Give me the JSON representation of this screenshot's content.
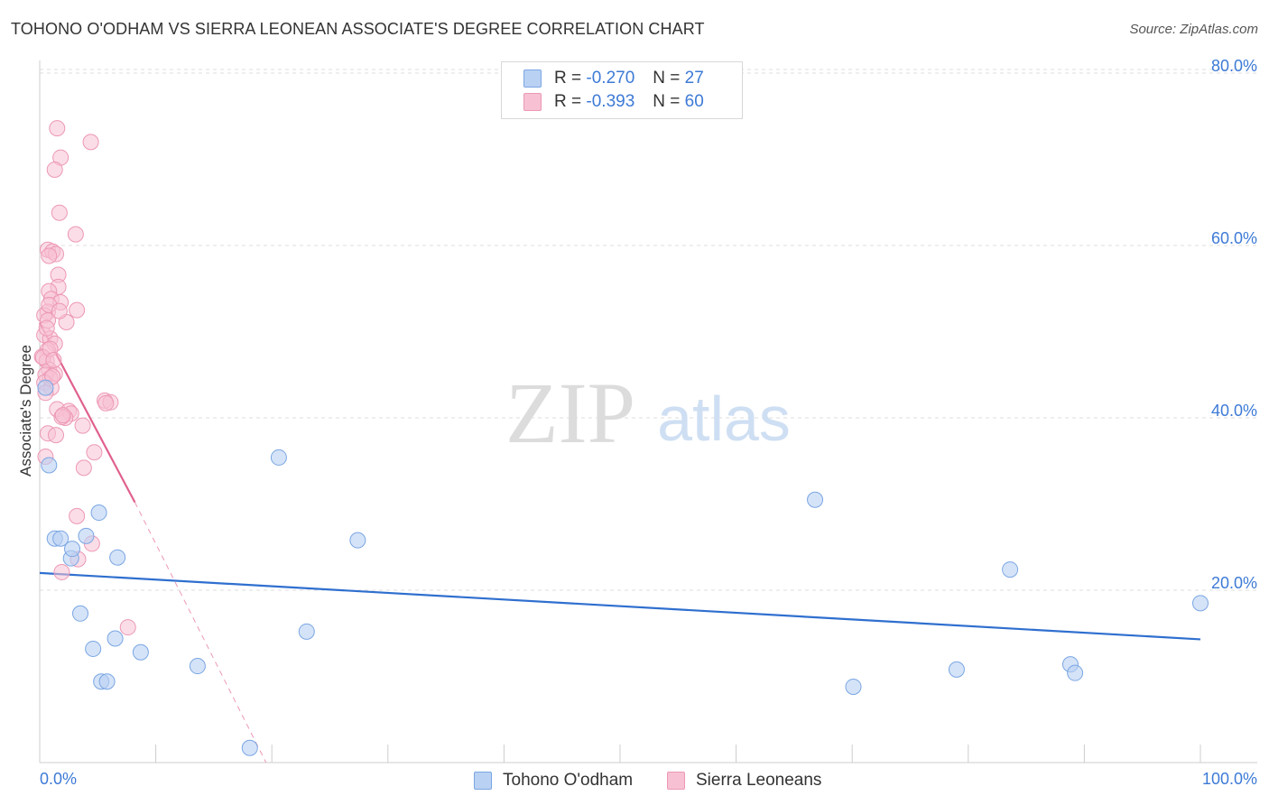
{
  "header": {
    "title": "TOHONO O'ODHAM VS SIERRA LEONEAN ASSOCIATE'S DEGREE CORRELATION CHART",
    "source": "Source: ZipAtlas.com"
  },
  "watermark": {
    "zip": "ZIP",
    "atlas": "atlas"
  },
  "legend_top": {
    "series1": {
      "r_label": "R = ",
      "r_value": "-0.270",
      "n_label": "N = ",
      "n_value": "27"
    },
    "series2": {
      "r_label": "R = ",
      "r_value": "-0.393",
      "n_label": "N = ",
      "n_value": "60"
    }
  },
  "colors": {
    "blue_fill": "#b9d1f3",
    "blue_stroke": "#7aa6e3",
    "blue_line": "#2f6fcf",
    "pink_fill": "#f7c1d3",
    "pink_stroke": "#ec98b5",
    "pink_line": "#e0608e",
    "axis_label": "#3d7ad6",
    "grid": "#dddddd"
  },
  "chart_data": {
    "type": "scatter",
    "title": "TOHONO O'ODHAM VS SIERRA LEONEAN ASSOCIATE'S DEGREE CORRELATION CHART",
    "xlabel": "",
    "ylabel": "Associate's Degree",
    "xlim": [
      0,
      100
    ],
    "ylim": [
      0,
      82
    ],
    "x_tick_labels": [
      "0.0%",
      "100.0%"
    ],
    "y_ticks": [
      20,
      40,
      60,
      80
    ],
    "y_tick_labels": [
      "20.0%",
      "40.0%",
      "60.0%",
      "80.0%"
    ],
    "grid": true,
    "legend_position": "bottom",
    "series": [
      {
        "name": "Tohono O'odham",
        "color": "blue",
        "points": [
          [
            0.8,
            34.5
          ],
          [
            1.3,
            26.0
          ],
          [
            1.8,
            26.0
          ],
          [
            2.7,
            23.7
          ],
          [
            2.8,
            24.8
          ],
          [
            4.0,
            26.3
          ],
          [
            5.1,
            29.0
          ],
          [
            6.7,
            23.8
          ],
          [
            3.5,
            17.3
          ],
          [
            4.6,
            13.2
          ],
          [
            6.5,
            14.4
          ],
          [
            8.7,
            12.8
          ],
          [
            5.3,
            9.4
          ],
          [
            5.8,
            9.4
          ],
          [
            13.6,
            11.2
          ],
          [
            18.1,
            1.7
          ],
          [
            20.6,
            35.4
          ],
          [
            23.0,
            15.2
          ],
          [
            27.4,
            25.8
          ],
          [
            66.8,
            30.5
          ],
          [
            70.1,
            8.8
          ],
          [
            79.0,
            10.8
          ],
          [
            83.6,
            22.4
          ],
          [
            88.8,
            11.4
          ],
          [
            89.2,
            10.4
          ],
          [
            100.0,
            18.5
          ],
          [
            0.5,
            43.5
          ]
        ],
        "trend": {
          "x": [
            0,
            100
          ],
          "y": [
            22.0,
            14.3
          ]
        }
      },
      {
        "name": "Sierra Leoneans",
        "color": "pink",
        "points": [
          [
            1.5,
            73.6
          ],
          [
            4.4,
            72.0
          ],
          [
            1.8,
            70.2
          ],
          [
            1.3,
            68.8
          ],
          [
            1.7,
            63.8
          ],
          [
            3.1,
            61.3
          ],
          [
            0.7,
            59.5
          ],
          [
            1.1,
            59.3
          ],
          [
            1.4,
            59.0
          ],
          [
            0.8,
            58.8
          ],
          [
            1.6,
            56.6
          ],
          [
            1.6,
            55.2
          ],
          [
            0.8,
            54.7
          ],
          [
            1.0,
            53.8
          ],
          [
            1.8,
            53.4
          ],
          [
            3.2,
            52.5
          ],
          [
            0.7,
            52.3
          ],
          [
            0.4,
            51.9
          ],
          [
            0.7,
            51.3
          ],
          [
            2.3,
            51.1
          ],
          [
            0.4,
            49.6
          ],
          [
            0.9,
            49.2
          ],
          [
            1.3,
            48.6
          ],
          [
            0.7,
            47.9
          ],
          [
            0.2,
            47.1
          ],
          [
            0.6,
            46.6
          ],
          [
            0.8,
            45.6
          ],
          [
            1.3,
            45.1
          ],
          [
            0.5,
            45.0
          ],
          [
            0.9,
            44.6
          ],
          [
            0.4,
            44.1
          ],
          [
            1.0,
            43.5
          ],
          [
            5.6,
            42.0
          ],
          [
            6.1,
            41.8
          ],
          [
            5.7,
            41.7
          ],
          [
            1.5,
            41.0
          ],
          [
            2.5,
            40.8
          ],
          [
            2.7,
            40.5
          ],
          [
            2.2,
            40.0
          ],
          [
            1.9,
            40.1
          ],
          [
            3.7,
            39.1
          ],
          [
            0.7,
            38.2
          ],
          [
            1.4,
            38.0
          ],
          [
            4.7,
            36.0
          ],
          [
            0.5,
            35.5
          ],
          [
            3.8,
            34.2
          ],
          [
            3.2,
            28.6
          ],
          [
            4.5,
            25.4
          ],
          [
            3.3,
            23.6
          ],
          [
            1.9,
            22.1
          ],
          [
            7.6,
            15.7
          ],
          [
            0.3,
            47.0
          ],
          [
            0.6,
            50.4
          ],
          [
            0.9,
            48.0
          ],
          [
            1.2,
            46.7
          ],
          [
            2.0,
            40.3
          ],
          [
            0.5,
            42.9
          ],
          [
            1.1,
            44.8
          ],
          [
            0.8,
            53.1
          ],
          [
            1.7,
            52.4
          ]
        ],
        "trend": {
          "x": [
            0,
            8.2
          ],
          "y": [
            51.0,
            30.2
          ]
        },
        "trend_extension": {
          "x": [
            8.2,
            19.5
          ],
          "y": [
            30.2,
            0
          ]
        }
      }
    ]
  },
  "legend_bottom": [
    {
      "label": "Tohono O'odham"
    },
    {
      "label": "Sierra Leoneans"
    }
  ]
}
